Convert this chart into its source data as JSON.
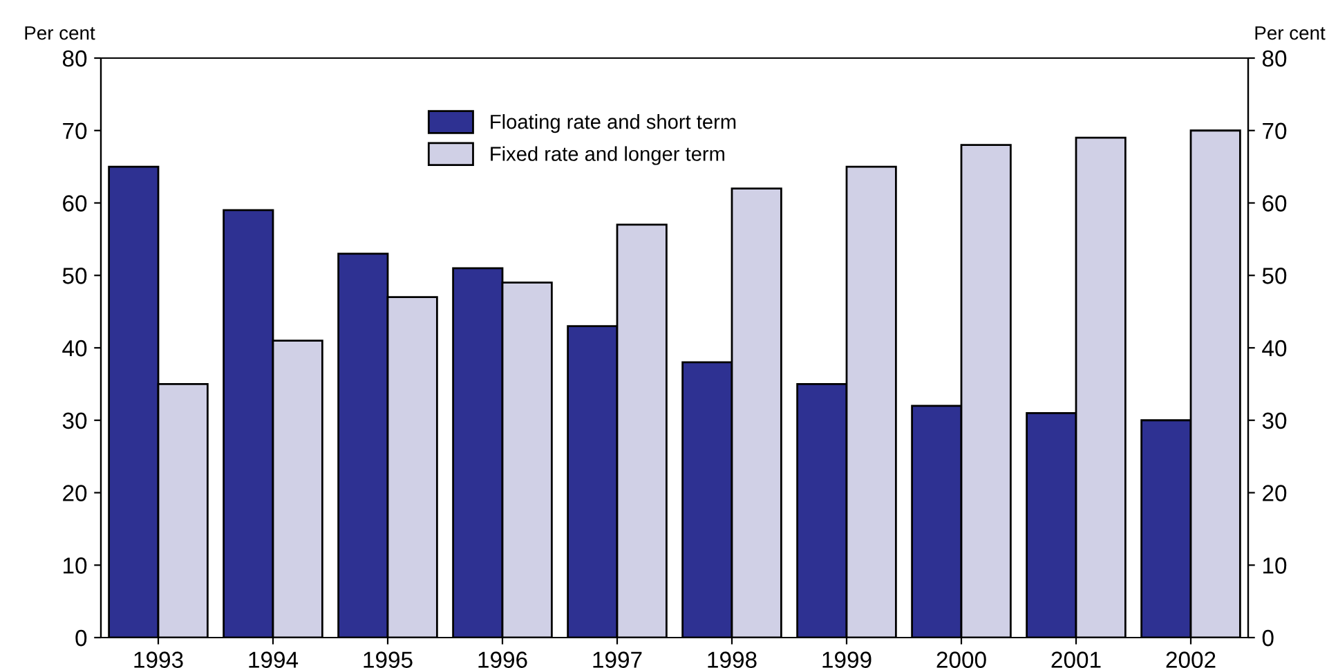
{
  "chart_data": {
    "type": "bar",
    "ylabel": "Per cent",
    "y2label": "Per cent",
    "categories": [
      "1993",
      "1994",
      "1995",
      "1996",
      "1997",
      "1998",
      "1999",
      "2000",
      "2001",
      "2002"
    ],
    "series": [
      {
        "name": "Floating rate and short term",
        "color": "#2e3192",
        "values": [
          65,
          59,
          53,
          51,
          43,
          38,
          35,
          32,
          31,
          30
        ]
      },
      {
        "name": "Fixed rate and longer term",
        "color": "#d0d0e6",
        "values": [
          35,
          41,
          47,
          49,
          57,
          62,
          65,
          68,
          69,
          70
        ]
      }
    ],
    "ylim": [
      0,
      80
    ],
    "yticks": [
      0,
      10,
      20,
      30,
      40,
      50,
      60,
      70,
      80
    ],
    "y2lim": [
      0,
      80
    ],
    "y2ticks": [
      0,
      10,
      20,
      30,
      40,
      50,
      60,
      70,
      80
    ],
    "grid": false,
    "legend": "top"
  }
}
